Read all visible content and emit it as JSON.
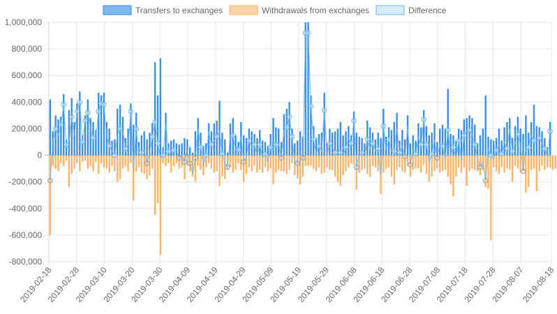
{
  "chart_data": {
    "type": "bar",
    "title": "",
    "xlabel": "",
    "ylabel": "",
    "ylim": [
      -800000,
      1000000
    ],
    "y_ticks": [
      {
        "value": 1000000,
        "label": "1,000,000"
      },
      {
        "value": 800000,
        "label": "800,000"
      },
      {
        "value": 600000,
        "label": "600,000"
      },
      {
        "value": 400000,
        "label": "400,000"
      },
      {
        "value": 200000,
        "label": "200,000"
      },
      {
        "value": 0,
        "label": "0"
      },
      {
        "value": -200000,
        "label": "-200,000"
      },
      {
        "value": -400000,
        "label": "-400,000"
      },
      {
        "value": -600000,
        "label": "-600,000"
      },
      {
        "value": -800000,
        "label": "-800,000"
      }
    ],
    "x_tick_labels": [
      "2019-02-18",
      "2019-02-28",
      "2019-03-10",
      "2019-03-20",
      "2019-03-30",
      "2019-04-09",
      "2019-04-19",
      "2019-04-29",
      "2019-05-09",
      "2019-05-19",
      "2019-05-29",
      "2019-06-08",
      "2019-06-18",
      "2019-06-28",
      "2019-07-08",
      "2019-07-18",
      "2019-07-28",
      "2019-08-07",
      "2019-08-18"
    ],
    "x_start": "2019-02-18",
    "x_end": "2019-08-18",
    "grid": true,
    "legend_position": "top",
    "colors": {
      "transfers": "#3a8ee6",
      "withdrawals": "#ffb366",
      "difference_fill": "#d6ecfa",
      "difference_stroke": "#6bb6e8"
    },
    "legend": [
      {
        "key": "transfers",
        "label": "Transfers to exchanges"
      },
      {
        "key": "withdrawals",
        "label": "Withdrawals from exchanges"
      },
      {
        "key": "difference",
        "label": "Difference"
      }
    ],
    "series": [
      {
        "name": "Transfers to exchanges",
        "values": [
          420000,
          180000,
          300000,
          270000,
          290000,
          460000,
          120000,
          340000,
          430000,
          250000,
          390000,
          480000,
          150000,
          300000,
          420000,
          280000,
          250000,
          190000,
          470000,
          450000,
          470000,
          250000,
          200000,
          110000,
          120000,
          350000,
          380000,
          290000,
          130000,
          200000,
          390000,
          230000,
          320000,
          100000,
          150000,
          180000,
          120000,
          170000,
          240000,
          700000,
          450000,
          730000,
          60000,
          320000,
          90000,
          110000,
          120000,
          90000,
          80000,
          90000,
          130000,
          120000,
          60000,
          20000,
          180000,
          280000,
          170000,
          70000,
          90000,
          240000,
          180000,
          240000,
          260000,
          410000,
          170000,
          120000,
          20000,
          240000,
          280000,
          150000,
          100000,
          250000,
          150000,
          130000,
          200000,
          180000,
          160000,
          130000,
          190000,
          110000,
          100000,
          70000,
          160000,
          280000,
          210000,
          200000,
          100000,
          310000,
          350000,
          400000,
          200000,
          90000,
          110000,
          180000,
          140000,
          1000000,
          1000000,
          450000,
          220000,
          130000,
          160000,
          170000,
          470000,
          90000,
          200000,
          170000,
          180000,
          200000,
          250000,
          150000,
          180000,
          220000,
          150000,
          330000,
          170000,
          140000,
          130000,
          90000,
          260000,
          210000,
          170000,
          120000,
          170000,
          130000,
          350000,
          140000,
          210000,
          190000,
          250000,
          320000,
          110000,
          190000,
          120000,
          300000,
          90000,
          150000,
          110000,
          240000,
          210000,
          340000,
          220000,
          150000,
          170000,
          240000,
          100000,
          200000,
          230000,
          200000,
          500000,
          160000,
          150000,
          110000,
          200000,
          190000,
          270000,
          280000,
          300000,
          280000,
          230000,
          90000,
          150000,
          200000,
          450000,
          140000,
          120000,
          110000,
          130000,
          200000,
          110000,
          210000,
          250000,
          280000,
          130000,
          220000,
          290000,
          200000,
          160000,
          300000,
          170000,
          250000,
          380000,
          220000,
          210000,
          180000,
          130000,
          60000,
          250000
        ]
      },
      {
        "name": "Withdrawals from exchanges",
        "values": [
          -600000,
          -80000,
          -100000,
          -120000,
          -60000,
          -80000,
          -40000,
          -240000,
          -140000,
          -100000,
          -60000,
          -120000,
          -50000,
          -40000,
          -100000,
          -80000,
          -120000,
          -50000,
          -140000,
          -60000,
          -90000,
          -100000,
          -130000,
          -80000,
          -120000,
          -200000,
          -180000,
          -100000,
          -80000,
          -120000,
          -60000,
          -340000,
          -120000,
          -90000,
          -130000,
          -140000,
          -180000,
          -150000,
          -100000,
          -450000,
          -360000,
          -750000,
          -60000,
          -80000,
          -60000,
          -130000,
          -80000,
          -60000,
          -100000,
          -90000,
          -180000,
          -80000,
          -120000,
          -160000,
          -200000,
          -80000,
          -110000,
          -150000,
          -90000,
          -60000,
          -100000,
          -130000,
          -120000,
          -230000,
          -160000,
          -180000,
          -110000,
          -90000,
          -130000,
          -110000,
          -60000,
          -110000,
          -200000,
          -140000,
          -90000,
          -120000,
          -80000,
          -130000,
          -110000,
          -130000,
          -90000,
          -120000,
          -100000,
          -220000,
          -130000,
          -110000,
          -120000,
          -120000,
          -140000,
          -110000,
          -60000,
          -150000,
          -170000,
          -220000,
          -160000,
          -80000,
          -80000,
          -80000,
          -100000,
          -120000,
          -90000,
          -140000,
          -130000,
          -90000,
          -110000,
          -110000,
          -160000,
          -200000,
          -230000,
          -150000,
          -120000,
          -90000,
          -60000,
          -70000,
          -260000,
          -130000,
          -110000,
          -100000,
          -140000,
          -160000,
          -80000,
          -90000,
          -120000,
          -290000,
          -130000,
          -100000,
          -90000,
          -160000,
          -220000,
          -110000,
          -90000,
          -120000,
          -130000,
          -80000,
          -160000,
          -110000,
          -100000,
          -100000,
          -130000,
          -70000,
          -140000,
          -200000,
          -160000,
          -120000,
          -100000,
          -130000,
          -120000,
          -110000,
          -160000,
          -220000,
          -310000,
          -160000,
          -90000,
          -130000,
          -90000,
          -230000,
          -120000,
          -100000,
          -110000,
          -120000,
          -150000,
          -110000,
          -240000,
          -250000,
          -640000,
          -90000,
          -120000,
          -140000,
          -90000,
          -130000,
          -100000,
          -110000,
          -200000,
          -80000,
          -100000,
          -130000,
          -120000,
          -280000,
          -240000,
          -110000,
          -100000,
          -270000,
          -120000,
          -80000,
          -110000,
          -90000,
          -90000,
          -110000,
          -100000,
          -80000,
          -80000,
          -70000,
          -70000
        ]
      }
    ],
    "difference": [
      -190000,
      100000,
      200000,
      150000,
      230000,
      380000,
      80000,
      100000,
      290000,
      150000,
      330000,
      400000,
      100000,
      260000,
      320000,
      200000,
      130000,
      140000,
      330000,
      390000,
      380000,
      150000,
      70000,
      30000,
      0,
      150000,
      200000,
      190000,
      50000,
      80000,
      330000,
      -110000,
      200000,
      10000,
      20000,
      40000,
      -60000,
      20000,
      140000,
      250000,
      90000,
      -20000,
      0,
      240000,
      30000,
      -20000,
      40000,
      30000,
      -20000,
      0,
      -50000,
      40000,
      -60000,
      -140000,
      -20000,
      200000,
      60000,
      -80000,
      0,
      180000,
      80000,
      110000,
      140000,
      180000,
      10000,
      -60000,
      -90000,
      150000,
      150000,
      40000,
      40000,
      140000,
      -50000,
      -10000,
      110000,
      60000,
      80000,
      0,
      80000,
      -20000,
      10000,
      -50000,
      60000,
      60000,
      80000,
      90000,
      -20000,
      190000,
      210000,
      290000,
      140000,
      -60000,
      -60000,
      -40000,
      -20000,
      920000,
      920000,
      370000,
      120000,
      10000,
      70000,
      30000,
      340000,
      0,
      90000,
      60000,
      20000,
      0,
      20000,
      0,
      60000,
      130000,
      90000,
      260000,
      -90000,
      10000,
      20000,
      -10000,
      120000,
      50000,
      90000,
      30000,
      50000,
      -160000,
      220000,
      40000,
      120000,
      30000,
      30000,
      210000,
      20000,
      70000,
      -10000,
      220000,
      -70000,
      40000,
      10000,
      140000,
      80000,
      270000,
      80000,
      -50000,
      10000,
      120000,
      -20000,
      90000,
      70000,
      -20000,
      190000,
      0,
      60000,
      -20000,
      110000,
      -40000,
      150000,
      180000,
      190000,
      160000,
      80000,
      -20000,
      -90000,
      -50000,
      -190000,
      50000,
      0,
      -30000,
      40000,
      70000,
      10000,
      100000,
      50000,
      200000,
      30000,
      90000,
      160000,
      80000,
      -120000,
      60000,
      60000,
      150000,
      110000,
      100000,
      130000,
      90000,
      50000,
      -10000,
      180000
    ]
  }
}
